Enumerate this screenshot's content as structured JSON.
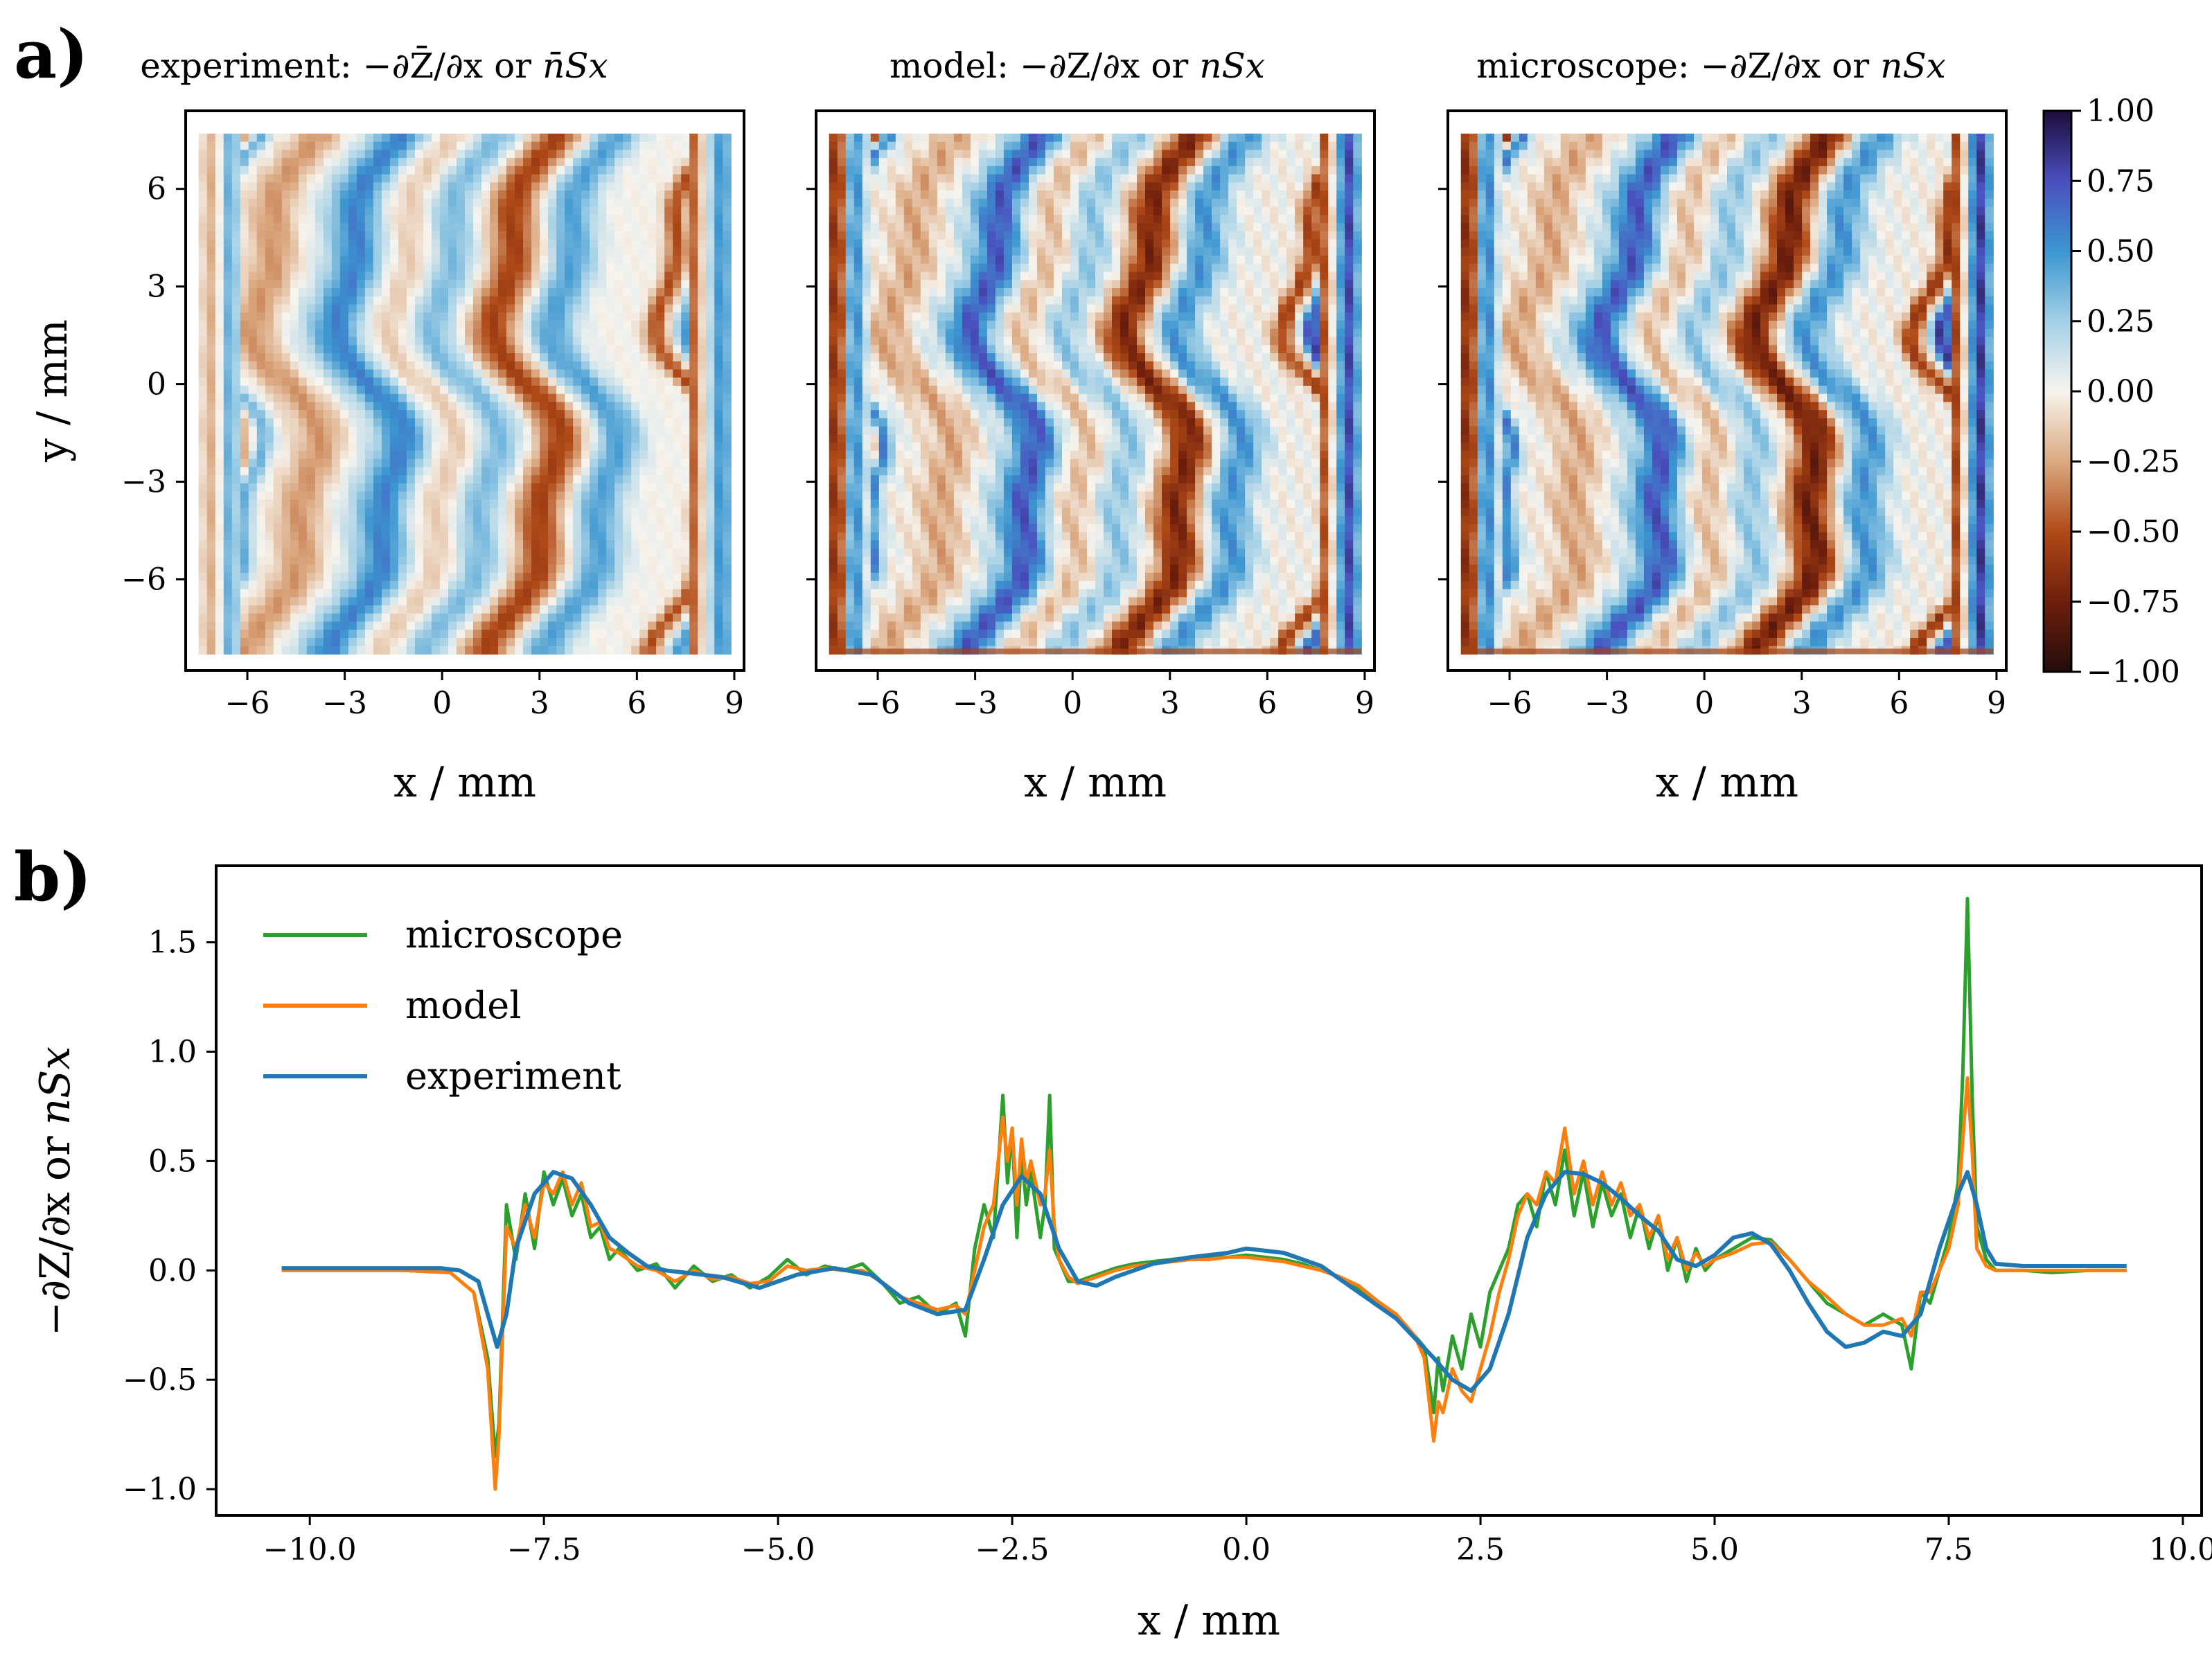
{
  "figure": {
    "panel_a_label": "a)",
    "panel_b_label": "b)"
  },
  "colors": {
    "microscope": "#2ca02c",
    "model": "#ff7f0e",
    "experiment": "#1f77b4",
    "frame": "#000000"
  },
  "chart_data": [
    {
      "type": "heatmap",
      "panel": "a",
      "name": "experiment",
      "title_prefix": "experiment:",
      "title_math": "−∂Z̄/∂x",
      "title_or": "or",
      "title_math2": "n̄Sx",
      "xlabel": "x / mm",
      "ylabel": "y / mm",
      "xticks": [
        -6,
        -3,
        0,
        3,
        6,
        9
      ],
      "xtick_labels": [
        "−6",
        "−3",
        "0",
        "3",
        "6",
        "9"
      ],
      "yticks": [
        6,
        3,
        0,
        -3,
        -6
      ],
      "ytick_labels": [
        "6",
        "3",
        "0",
        "−3",
        "−6"
      ],
      "xlim": [
        -7.9,
        9.3
      ],
      "ylim": [
        -8.8,
        8.4
      ],
      "bands": [
        {
          "x": -7.0,
          "v": -0.3
        },
        {
          "x": -6.6,
          "v": 0.45
        },
        {
          "x": -4.8,
          "v": -0.3
        },
        {
          "x": -3.1,
          "v": 0.1
        },
        {
          "x": -2.2,
          "v": 0.55
        },
        {
          "x": -0.5,
          "v": -0.15
        },
        {
          "x": 0.7,
          "v": 0.35
        },
        {
          "x": 2.6,
          "v": -0.55
        },
        {
          "x": 4.4,
          "v": 0.45
        },
        {
          "x": 7.6,
          "v": -0.5
        },
        {
          "x": 8.6,
          "v": 0.5
        }
      ]
    },
    {
      "type": "heatmap",
      "panel": "a",
      "name": "model",
      "title_prefix": "model:",
      "title_math": "−∂Z/∂x",
      "title_or": "or",
      "title_math2": "nSx",
      "xlabel": "x / mm",
      "xticks": [
        -6,
        -3,
        0,
        3,
        6,
        9
      ],
      "xtick_labels": [
        "−6",
        "−3",
        "0",
        "3",
        "6",
        "9"
      ],
      "xlim": [
        -7.9,
        9.3
      ],
      "ylim": [
        -8.8,
        8.4
      ],
      "bands": [
        {
          "x": -7.2,
          "v": -0.8
        },
        {
          "x": -6.8,
          "v": 0.7
        },
        {
          "x": -4.6,
          "v": -0.25
        },
        {
          "x": -3.0,
          "v": 0.1
        },
        {
          "x": -2.0,
          "v": 0.7
        },
        {
          "x": -0.4,
          "v": -0.2
        },
        {
          "x": 0.8,
          "v": 0.3
        },
        {
          "x": 2.7,
          "v": -0.7
        },
        {
          "x": 4.3,
          "v": 0.5
        },
        {
          "x": 7.6,
          "v": -0.55
        },
        {
          "x": 8.5,
          "v": 0.75
        }
      ]
    },
    {
      "type": "heatmap",
      "panel": "a",
      "name": "microscope",
      "title_prefix": "microscope:",
      "title_math": "−∂Z/∂x",
      "title_or": "or",
      "title_math2": "nSx",
      "xlabel": "x / mm",
      "xticks": [
        -6,
        -3,
        0,
        3,
        6,
        9
      ],
      "xtick_labels": [
        "−6",
        "−3",
        "0",
        "3",
        "6",
        "9"
      ],
      "xlim": [
        -7.9,
        9.3
      ],
      "ylim": [
        -8.8,
        8.4
      ],
      "bands": [
        {
          "x": -7.2,
          "v": -0.85
        },
        {
          "x": -6.8,
          "v": 0.75
        },
        {
          "x": -4.6,
          "v": -0.25
        },
        {
          "x": -3.0,
          "v": 0.1
        },
        {
          "x": -2.0,
          "v": 0.7
        },
        {
          "x": -0.4,
          "v": -0.2
        },
        {
          "x": 0.8,
          "v": 0.3
        },
        {
          "x": 2.7,
          "v": -0.75
        },
        {
          "x": 4.3,
          "v": 0.5
        },
        {
          "x": 7.6,
          "v": -0.6
        },
        {
          "x": 8.5,
          "v": 0.8
        }
      ]
    },
    {
      "type": "colorbar",
      "panel": "a",
      "range": [
        -1.0,
        1.0
      ],
      "ticks": [
        1.0,
        0.75,
        0.5,
        0.25,
        0.0,
        -0.25,
        -0.5,
        -0.75,
        -1.0
      ],
      "tick_labels": [
        "1.00",
        "0.75",
        "0.50",
        "0.25",
        "0.00",
        "−0.25",
        "−0.50",
        "−0.75",
        "−1.00"
      ],
      "colormap_stops": [
        {
          "v": -1.0,
          "color": "#230c0c"
        },
        {
          "v": -0.75,
          "color": "#6e1e0c"
        },
        {
          "v": -0.5,
          "color": "#b04a18"
        },
        {
          "v": -0.25,
          "color": "#dba981"
        },
        {
          "v": 0.0,
          "color": "#f7f4ee"
        },
        {
          "v": 0.25,
          "color": "#a3d0e6"
        },
        {
          "v": 0.5,
          "color": "#3c96d0"
        },
        {
          "v": 0.75,
          "color": "#4a4fbe"
        },
        {
          "v": 1.0,
          "color": "#1c0c3a"
        }
      ]
    },
    {
      "type": "line",
      "panel": "b",
      "xlabel": "x / mm",
      "ylabel_math": "−∂Z/∂x",
      "ylabel_or": "or",
      "ylabel_math2": "nSx",
      "xlim": [
        -11.0,
        10.2
      ],
      "ylim": [
        -1.12,
        1.85
      ],
      "xticks": [
        -10.0,
        -7.5,
        -5.0,
        -2.5,
        0.0,
        2.5,
        5.0,
        7.5,
        10.0
      ],
      "xtick_labels": [
        "−10.0",
        "−7.5",
        "−5.0",
        "−2.5",
        "0.0",
        "2.5",
        "5.0",
        "7.5",
        "10.0"
      ],
      "yticks": [
        1.5,
        1.0,
        0.5,
        0.0,
        -0.5,
        -1.0
      ],
      "ytick_labels": [
        "1.5",
        "1.0",
        "0.5",
        "0.0",
        "−0.5",
        "−1.0"
      ],
      "legend_position": "top-left",
      "series": [
        {
          "name": "microscope",
          "x": [
            -10.3,
            -9.0,
            -8.5,
            -8.25,
            -8.1,
            -8.02,
            -7.98,
            -7.9,
            -7.8,
            -7.7,
            -7.6,
            -7.5,
            -7.4,
            -7.3,
            -7.2,
            -7.1,
            -7.0,
            -6.9,
            -6.8,
            -6.7,
            -6.5,
            -6.3,
            -6.1,
            -5.9,
            -5.7,
            -5.5,
            -5.3,
            -5.1,
            -4.9,
            -4.7,
            -4.5,
            -4.3,
            -4.1,
            -3.9,
            -3.7,
            -3.5,
            -3.3,
            -3.1,
            -3.0,
            -2.9,
            -2.8,
            -2.7,
            -2.6,
            -2.55,
            -2.5,
            -2.45,
            -2.4,
            -2.35,
            -2.3,
            -2.2,
            -2.15,
            -2.1,
            -2.05,
            -2.0,
            -1.9,
            -1.8,
            -1.6,
            -1.4,
            -1.2,
            -1.0,
            -0.8,
            -0.6,
            -0.4,
            -0.2,
            0.0,
            0.2,
            0.4,
            0.6,
            0.8,
            1.0,
            1.2,
            1.4,
            1.6,
            1.8,
            1.9,
            2.0,
            2.05,
            2.1,
            2.2,
            2.3,
            2.4,
            2.5,
            2.6,
            2.7,
            2.8,
            2.9,
            3.0,
            3.1,
            3.2,
            3.3,
            3.4,
            3.5,
            3.6,
            3.7,
            3.8,
            3.9,
            4.0,
            4.1,
            4.2,
            4.3,
            4.4,
            4.5,
            4.6,
            4.7,
            4.8,
            4.9,
            5.0,
            5.2,
            5.4,
            5.6,
            5.8,
            6.0,
            6.2,
            6.4,
            6.6,
            6.8,
            7.0,
            7.1,
            7.2,
            7.3,
            7.4,
            7.5,
            7.6,
            7.65,
            7.7,
            7.75,
            7.8,
            7.9,
            8.0,
            8.3,
            8.6,
            9.0,
            9.4
          ],
          "y": [
            0.01,
            0.0,
            -0.01,
            -0.1,
            -0.4,
            -0.85,
            -0.7,
            0.3,
            0.05,
            0.35,
            0.1,
            0.45,
            0.3,
            0.42,
            0.25,
            0.35,
            0.15,
            0.2,
            0.05,
            0.1,
            0.0,
            0.03,
            -0.08,
            0.02,
            -0.05,
            -0.02,
            -0.08,
            -0.03,
            0.05,
            -0.02,
            0.02,
            0.0,
            0.03,
            -0.05,
            -0.15,
            -0.12,
            -0.2,
            -0.15,
            -0.3,
            0.1,
            0.3,
            0.15,
            0.8,
            0.4,
            0.65,
            0.15,
            0.55,
            0.3,
            0.45,
            0.15,
            0.3,
            0.8,
            0.1,
            0.05,
            -0.05,
            -0.05,
            -0.02,
            0.01,
            0.03,
            0.04,
            0.05,
            0.06,
            0.06,
            0.06,
            0.07,
            0.06,
            0.05,
            0.03,
            0.0,
            -0.03,
            -0.08,
            -0.15,
            -0.22,
            -0.3,
            -0.35,
            -0.65,
            -0.4,
            -0.55,
            -0.3,
            -0.45,
            -0.2,
            -0.35,
            -0.1,
            0.0,
            0.1,
            0.3,
            0.35,
            0.2,
            0.45,
            0.3,
            0.55,
            0.25,
            0.45,
            0.2,
            0.4,
            0.25,
            0.35,
            0.15,
            0.3,
            0.1,
            0.25,
            0.0,
            0.15,
            -0.05,
            0.1,
            0.0,
            0.05,
            0.1,
            0.15,
            0.14,
            0.05,
            -0.05,
            -0.15,
            -0.2,
            -0.25,
            -0.2,
            -0.25,
            -0.45,
            -0.1,
            -0.15,
            0.0,
            0.15,
            0.4,
            0.9,
            1.7,
            0.8,
            0.2,
            0.05,
            0.0,
            0.0,
            -0.01,
            0.0,
            0.0
          ]
        },
        {
          "name": "model",
          "x": [
            -10.3,
            -9.0,
            -8.5,
            -8.25,
            -8.1,
            -8.02,
            -7.98,
            -7.9,
            -7.8,
            -7.7,
            -7.6,
            -7.5,
            -7.4,
            -7.3,
            -7.2,
            -7.1,
            -7.0,
            -6.9,
            -6.8,
            -6.7,
            -6.5,
            -6.3,
            -6.1,
            -5.9,
            -5.7,
            -5.5,
            -5.3,
            -5.1,
            -4.9,
            -4.7,
            -4.5,
            -4.3,
            -4.1,
            -3.9,
            -3.7,
            -3.5,
            -3.3,
            -3.1,
            -3.0,
            -2.9,
            -2.8,
            -2.7,
            -2.6,
            -2.55,
            -2.5,
            -2.45,
            -2.4,
            -2.35,
            -2.3,
            -2.2,
            -2.15,
            -2.1,
            -2.05,
            -2.0,
            -1.9,
            -1.8,
            -1.6,
            -1.4,
            -1.2,
            -1.0,
            -0.8,
            -0.6,
            -0.4,
            -0.2,
            0.0,
            0.2,
            0.4,
            0.6,
            0.8,
            1.0,
            1.2,
            1.4,
            1.6,
            1.8,
            1.9,
            2.0,
            2.05,
            2.1,
            2.2,
            2.3,
            2.4,
            2.5,
            2.6,
            2.7,
            2.8,
            2.9,
            3.0,
            3.1,
            3.2,
            3.3,
            3.4,
            3.5,
            3.6,
            3.7,
            3.8,
            3.9,
            4.0,
            4.1,
            4.2,
            4.3,
            4.4,
            4.5,
            4.6,
            4.7,
            4.8,
            4.9,
            5.0,
            5.2,
            5.4,
            5.6,
            5.8,
            6.0,
            6.2,
            6.4,
            6.6,
            6.8,
            7.0,
            7.1,
            7.2,
            7.3,
            7.4,
            7.5,
            7.6,
            7.65,
            7.7,
            7.75,
            7.8,
            7.9,
            8.0,
            8.3,
            8.6,
            9.0,
            9.4
          ],
          "y": [
            0.0,
            0.0,
            -0.01,
            -0.1,
            -0.45,
            -1.0,
            -0.75,
            0.2,
            0.1,
            0.3,
            0.15,
            0.4,
            0.35,
            0.45,
            0.3,
            0.4,
            0.2,
            0.22,
            0.1,
            0.08,
            0.02,
            0.0,
            -0.05,
            0.0,
            -0.04,
            -0.03,
            -0.06,
            -0.05,
            0.02,
            0.0,
            0.01,
            0.0,
            0.0,
            -0.05,
            -0.12,
            -0.15,
            -0.18,
            -0.16,
            -0.2,
            0.0,
            0.2,
            0.3,
            0.7,
            0.5,
            0.65,
            0.3,
            0.6,
            0.4,
            0.5,
            0.3,
            0.35,
            0.55,
            0.2,
            0.05,
            -0.03,
            -0.06,
            -0.03,
            0.0,
            0.02,
            0.03,
            0.04,
            0.05,
            0.05,
            0.06,
            0.06,
            0.05,
            0.04,
            0.02,
            0.0,
            -0.03,
            -0.07,
            -0.14,
            -0.2,
            -0.3,
            -0.4,
            -0.78,
            -0.6,
            -0.65,
            -0.45,
            -0.55,
            -0.6,
            -0.45,
            -0.3,
            -0.1,
            0.05,
            0.25,
            0.35,
            0.3,
            0.45,
            0.4,
            0.65,
            0.35,
            0.5,
            0.3,
            0.45,
            0.3,
            0.4,
            0.25,
            0.3,
            0.15,
            0.25,
            0.05,
            0.15,
            0.0,
            0.08,
            0.02,
            0.05,
            0.08,
            0.12,
            0.13,
            0.05,
            -0.05,
            -0.12,
            -0.2,
            -0.25,
            -0.25,
            -0.22,
            -0.3,
            -0.1,
            -0.1,
            0.0,
            0.1,
            0.3,
            0.6,
            0.88,
            0.55,
            0.1,
            0.02,
            0.0,
            0.0,
            0.0,
            0.0,
            0.0
          ]
        },
        {
          "name": "experiment",
          "x": [
            -10.3,
            -9.5,
            -9.0,
            -8.6,
            -8.4,
            -8.2,
            -8.1,
            -8.0,
            -7.9,
            -7.8,
            -7.6,
            -7.4,
            -7.2,
            -7.0,
            -6.8,
            -6.6,
            -6.4,
            -6.2,
            -6.0,
            -5.6,
            -5.2,
            -4.8,
            -4.4,
            -4.0,
            -3.6,
            -3.3,
            -3.0,
            -2.8,
            -2.6,
            -2.4,
            -2.2,
            -2.0,
            -1.8,
            -1.6,
            -1.4,
            -1.0,
            -0.6,
            -0.2,
            0.0,
            0.4,
            0.8,
            1.2,
            1.6,
            2.0,
            2.2,
            2.4,
            2.6,
            2.8,
            3.0,
            3.2,
            3.4,
            3.6,
            3.8,
            4.0,
            4.2,
            4.4,
            4.6,
            4.8,
            5.0,
            5.2,
            5.4,
            5.6,
            5.8,
            6.0,
            6.2,
            6.4,
            6.6,
            6.8,
            7.0,
            7.2,
            7.4,
            7.6,
            7.7,
            7.8,
            7.9,
            8.0,
            8.3,
            8.8,
            9.4
          ],
          "y": [
            0.01,
            0.01,
            0.01,
            0.01,
            0.0,
            -0.05,
            -0.2,
            -0.35,
            -0.2,
            0.1,
            0.35,
            0.45,
            0.42,
            0.3,
            0.15,
            0.08,
            0.02,
            0.0,
            -0.01,
            -0.03,
            -0.08,
            -0.02,
            0.01,
            -0.02,
            -0.15,
            -0.2,
            -0.18,
            0.05,
            0.3,
            0.43,
            0.35,
            0.1,
            -0.05,
            -0.07,
            -0.03,
            0.03,
            0.06,
            0.08,
            0.1,
            0.08,
            0.02,
            -0.1,
            -0.22,
            -0.4,
            -0.5,
            -0.55,
            -0.45,
            -0.2,
            0.15,
            0.35,
            0.45,
            0.44,
            0.4,
            0.33,
            0.25,
            0.18,
            0.05,
            0.02,
            0.07,
            0.15,
            0.17,
            0.12,
            0.0,
            -0.15,
            -0.28,
            -0.35,
            -0.33,
            -0.28,
            -0.3,
            -0.2,
            0.1,
            0.35,
            0.45,
            0.3,
            0.1,
            0.03,
            0.02,
            0.02,
            0.02
          ]
        }
      ]
    }
  ]
}
